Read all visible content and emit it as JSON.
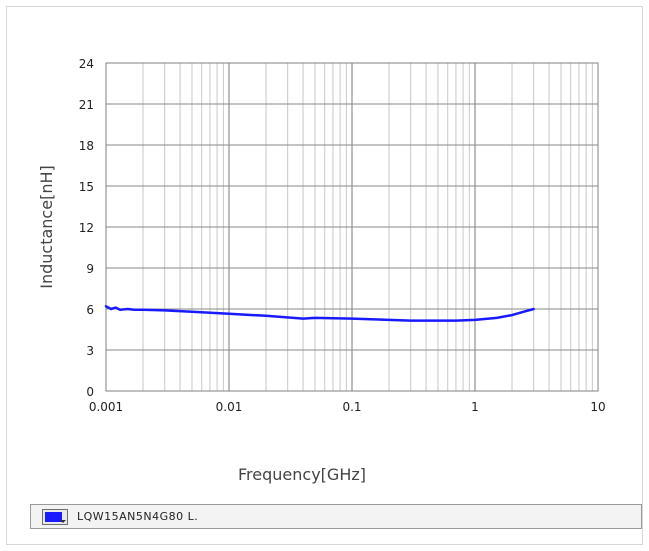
{
  "chart_data": {
    "type": "line",
    "xscale": "log",
    "xlim": [
      0.001,
      10
    ],
    "ylim": [
      0,
      24
    ],
    "grid": true,
    "xlabel": "Frequency[GHz]",
    "ylabel": "Inductance[nH]",
    "xticks": [
      {
        "value": 0.001,
        "label": "0.001"
      },
      {
        "value": 0.01,
        "label": "0.01"
      },
      {
        "value": 0.1,
        "label": "0.1"
      },
      {
        "value": 1,
        "label": "1"
      },
      {
        "value": 10,
        "label": "10"
      }
    ],
    "yticks": [
      {
        "value": 0,
        "label": "0"
      },
      {
        "value": 3,
        "label": "3"
      },
      {
        "value": 6,
        "label": "6"
      },
      {
        "value": 9,
        "label": "9"
      },
      {
        "value": 12,
        "label": "12"
      },
      {
        "value": 15,
        "label": "15"
      },
      {
        "value": 18,
        "label": "18"
      },
      {
        "value": 21,
        "label": "21"
      },
      {
        "value": 24,
        "label": "24"
      }
    ],
    "series": [
      {
        "name": "LQW15AN5N4G80 L.",
        "color": "#1a1aff",
        "x": [
          0.001,
          0.0011,
          0.0012,
          0.0013,
          0.0015,
          0.0017,
          0.002,
          0.003,
          0.005,
          0.01,
          0.02,
          0.04,
          0.05,
          0.1,
          0.2,
          0.3,
          0.5,
          0.7,
          1.0,
          1.5,
          2.0,
          2.5,
          3.0
        ],
        "y": [
          6.2,
          6.0,
          6.1,
          5.95,
          6.0,
          5.95,
          5.95,
          5.9,
          5.8,
          5.65,
          5.5,
          5.3,
          5.35,
          5.3,
          5.2,
          5.15,
          5.15,
          5.15,
          5.2,
          5.35,
          5.55,
          5.8,
          6.0
        ]
      }
    ]
  },
  "legend": {
    "label": "LQW15AN5N4G80 L.",
    "swatch_color": "#1a1aff"
  }
}
